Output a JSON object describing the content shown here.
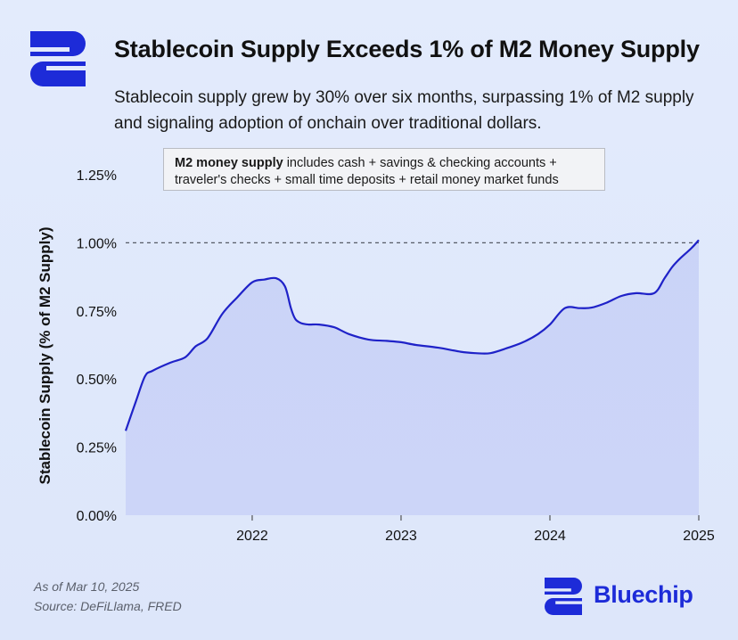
{
  "header": {
    "title": "Stablecoin Supply Exceeds 1% of M2 Money Supply",
    "subtitle": "Stablecoin supply grew by 30% over six months, surpassing 1% of M2 supply and signaling adoption of onchain over traditional dollars."
  },
  "note": {
    "bold": "M2 money supply",
    "rest": " includes cash + savings & checking accounts + traveler's checks + small time deposits + retail money market funds"
  },
  "footer": {
    "as_of": "As of Mar 10, 2025",
    "source": "Source: DeFiLlama, FRED",
    "brand": "Bluechip"
  },
  "colors": {
    "line": "#1f22c8",
    "fill": "#c9d2f7",
    "brand": "#1d2bd8",
    "reference_line": "#555a66"
  },
  "icons": [
    "bluechip-logo-icon"
  ],
  "chart_data": {
    "type": "area",
    "title": "",
    "xlabel": "",
    "ylabel": "Stablecoin Supply (% of M2 Supply)",
    "xlim": [
      2021.15,
      2025.0
    ],
    "ylim": [
      0,
      1.25
    ],
    "x_ticks": [
      2022,
      2023,
      2024,
      2025
    ],
    "x_tick_labels": [
      "2022",
      "2023",
      "2024",
      "2025"
    ],
    "y_ticks": [
      0,
      0.25,
      0.5,
      0.75,
      1.0,
      1.25
    ],
    "y_tick_labels": [
      "0.00%",
      "0.25%",
      "0.50%",
      "0.75%",
      "1.00%",
      "1.25%"
    ],
    "reference_line": {
      "y": 1.0,
      "style": "dashed"
    },
    "grid": false,
    "series": [
      {
        "x": [
          2021.15,
          2021.22,
          2021.28,
          2021.33,
          2021.45,
          2021.55,
          2021.62,
          2021.7,
          2021.8,
          2021.9,
          2022.0,
          2022.08,
          2022.16,
          2022.22,
          2022.26,
          2022.29,
          2022.33,
          2022.38,
          2022.45,
          2022.55,
          2022.65,
          2022.78,
          2022.9,
          2023.0,
          2023.1,
          2023.25,
          2023.4,
          2023.5,
          2023.6,
          2023.72,
          2023.82,
          2023.92,
          2024.0,
          2024.1,
          2024.2,
          2024.28,
          2024.38,
          2024.48,
          2024.58,
          2024.7,
          2024.77,
          2024.82,
          2024.87,
          2024.95,
          2025.0
        ],
        "values": [
          0.31,
          0.42,
          0.51,
          0.53,
          0.56,
          0.58,
          0.62,
          0.65,
          0.74,
          0.8,
          0.855,
          0.865,
          0.87,
          0.84,
          0.76,
          0.72,
          0.705,
          0.7,
          0.7,
          0.69,
          0.665,
          0.645,
          0.64,
          0.635,
          0.625,
          0.615,
          0.6,
          0.595,
          0.595,
          0.615,
          0.635,
          0.665,
          0.7,
          0.76,
          0.76,
          0.762,
          0.78,
          0.805,
          0.815,
          0.815,
          0.87,
          0.91,
          0.94,
          0.98,
          1.01
        ]
      }
    ]
  }
}
